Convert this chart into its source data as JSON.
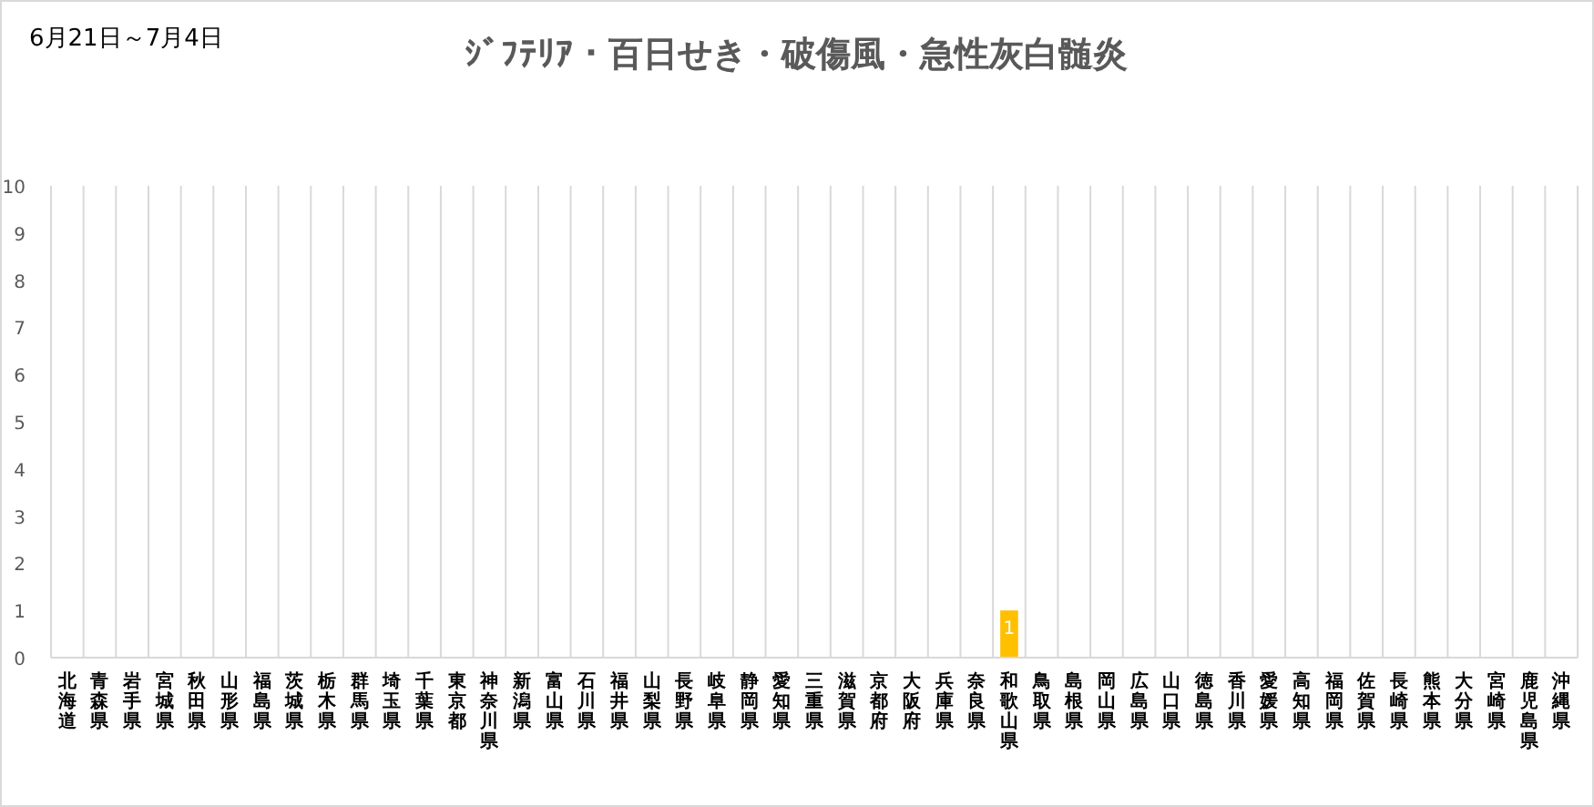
{
  "chart_data": {
    "type": "bar",
    "title": "ｼﾞﾌﾃﾘｱ・百日せき・破傷風・急性灰白髄炎",
    "subtitle": "6月21日～7月4日",
    "categories": [
      "北海道",
      "青森県",
      "岩手県",
      "宮城県",
      "秋田県",
      "山形県",
      "福島県",
      "茨城県",
      "栃木県",
      "群馬県",
      "埼玉県",
      "千葉県",
      "東京都",
      "神奈川県",
      "新潟県",
      "富山県",
      "石川県",
      "福井県",
      "山梨県",
      "長野県",
      "岐阜県",
      "静岡県",
      "愛知県",
      "三重県",
      "滋賀県",
      "京都府",
      "大阪府",
      "兵庫県",
      "奈良県",
      "和歌山県",
      "鳥取県",
      "島根県",
      "岡山県",
      "広島県",
      "山口県",
      "徳島県",
      "香川県",
      "愛媛県",
      "高知県",
      "福岡県",
      "佐賀県",
      "長崎県",
      "熊本県",
      "大分県",
      "宮崎県",
      "鹿児島県",
      "沖縄県"
    ],
    "values": [
      0,
      0,
      0,
      0,
      0,
      0,
      0,
      0,
      0,
      0,
      0,
      0,
      0,
      0,
      0,
      0,
      0,
      0,
      0,
      0,
      0,
      0,
      0,
      0,
      0,
      0,
      0,
      0,
      0,
      1,
      0,
      0,
      0,
      0,
      0,
      0,
      0,
      0,
      0,
      0,
      0,
      0,
      0,
      0,
      0,
      0,
      0
    ],
    "value_labels": [
      null,
      null,
      null,
      null,
      null,
      null,
      null,
      null,
      null,
      null,
      null,
      null,
      null,
      null,
      null,
      null,
      null,
      null,
      null,
      null,
      null,
      null,
      null,
      null,
      null,
      null,
      null,
      null,
      null,
      "1",
      null,
      null,
      null,
      null,
      null,
      null,
      null,
      null,
      null,
      null,
      null,
      null,
      null,
      null,
      null,
      null,
      null
    ],
    "color": "#ffc000",
    "ylim": [
      0,
      10
    ],
    "yticks": [
      0,
      1,
      2,
      3,
      4,
      5,
      6,
      7,
      8,
      9,
      10
    ],
    "grid": "x"
  }
}
